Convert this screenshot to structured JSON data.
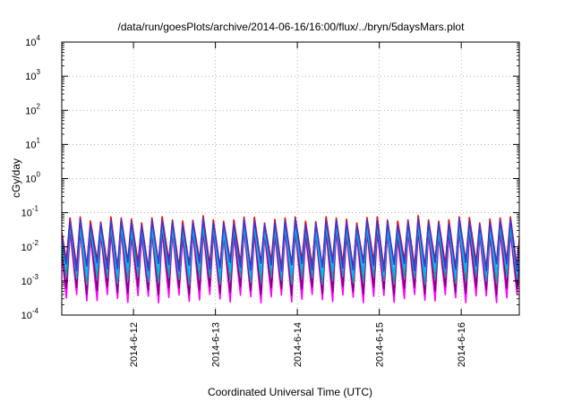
{
  "chart_data": {
    "type": "line",
    "title": "/data/run/goesPlots/archive/2014-06-16/16:00/flux/../bryn/5daysMars.plot",
    "xlabel": "Coordinated Universal Time (UTC)",
    "ylabel": "cGy/day",
    "x_ticks": [
      "2014-6-12",
      "2014-6-13",
      "2014-6-14",
      "2014-6-15",
      "2014-6-16"
    ],
    "x_range": [
      "2014-06-11T03:00",
      "2014-06-16T17:00"
    ],
    "y_scale": "log",
    "y_ticks": [
      {
        "base": "10",
        "exp": "4"
      },
      {
        "base": "10",
        "exp": "3"
      },
      {
        "base": "10",
        "exp": "2"
      },
      {
        "base": "10",
        "exp": "1"
      },
      {
        "base": "10",
        "exp": "0"
      },
      {
        "base": "10",
        "exp": "-1"
      },
      {
        "base": "10",
        "exp": "-2"
      },
      {
        "base": "10",
        "exp": "-3"
      },
      {
        "base": "10",
        "exp": "-4"
      }
    ],
    "ylim": [
      0.0001,
      10000
    ],
    "grid": true,
    "pattern": {
      "cycle_hours": 3,
      "peak_range": [
        0.012,
        0.075
      ],
      "trough_range": [
        0.0003,
        0.004
      ]
    },
    "series": [
      {
        "color": "#ff00ff",
        "peak": 0.025,
        "trough": 0.00035
      },
      {
        "color": "#800080",
        "peak": 0.03,
        "trough": 0.0006
      },
      {
        "color": "#1ba19a",
        "peak": 0.035,
        "trough": 0.0012
      },
      {
        "color": "#00b7ff",
        "peak": 0.04,
        "trough": 0.002
      },
      {
        "color": "#ff0000",
        "peak": 0.065,
        "trough": 0.0035
      },
      {
        "color": "#3a39d3",
        "peak": 0.055,
        "trough": 0.003
      }
    ]
  }
}
